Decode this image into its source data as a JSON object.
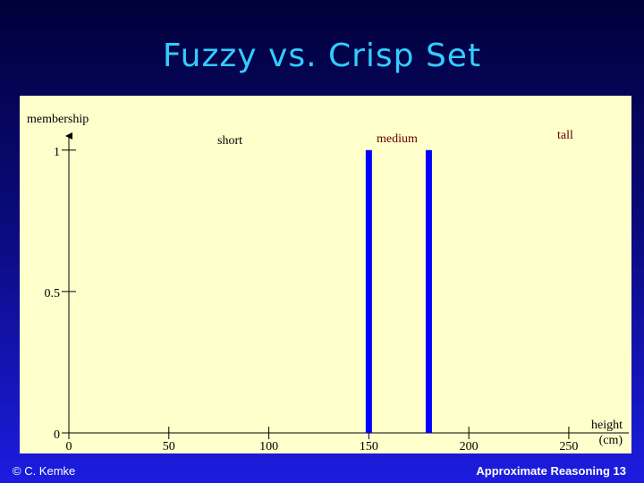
{
  "header": {
    "title": "Fuzzy vs. Crisp Set"
  },
  "chart_data": {
    "type": "bar",
    "ylabel": "membership",
    "xlabel": "height (cm)",
    "annotations": [
      "short",
      "medium",
      "tall"
    ],
    "x": [
      150,
      180
    ],
    "values": [
      1,
      1
    ],
    "color": "#0000ff",
    "xlim": [
      0,
      280
    ],
    "xticks": [
      0,
      50,
      100,
      150,
      200,
      250
    ],
    "ylim": [
      0,
      1.05
    ],
    "yticks": [
      0,
      0.5,
      1
    ]
  },
  "footer": {
    "left": "© C. Kemke",
    "right": "Approximate Reasoning 13"
  }
}
